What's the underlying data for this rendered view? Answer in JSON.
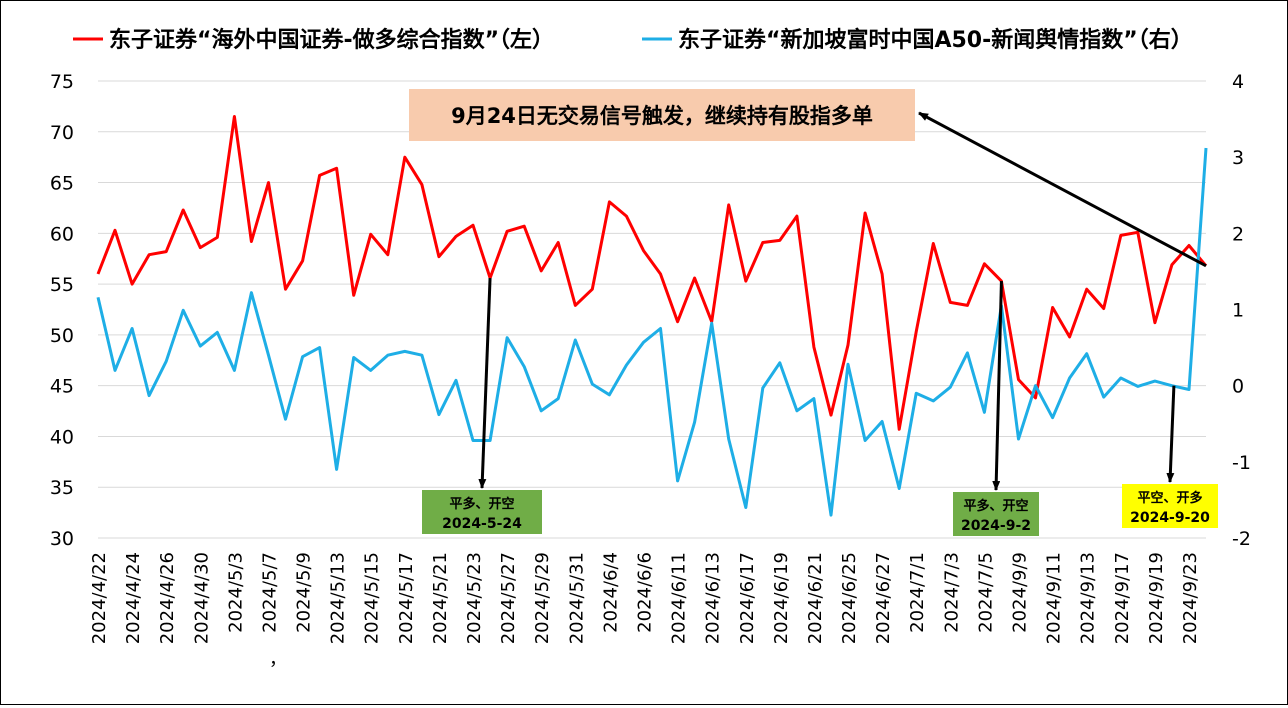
{
  "chart_data": {
    "type": "line",
    "legend_position": "top",
    "grid": "horizontal",
    "left_axis": {
      "ylim": [
        30,
        75
      ],
      "ticks": [
        "30",
        "35",
        "40",
        "45",
        "50",
        "55",
        "60",
        "65",
        "70",
        "75"
      ]
    },
    "right_axis": {
      "ylim": [
        -2,
        4
      ],
      "ticks": [
        "-2",
        "-1",
        "0",
        "1",
        "2",
        "3",
        "4"
      ]
    },
    "x_tick_labels": [
      "2024/4/22",
      "2024/4/24",
      "2024/4/26",
      "2024/4/30",
      "2024/5/3",
      "2024/5/7",
      "2024/5/9",
      "2024/5/13",
      "2024/5/15",
      "2024/5/17",
      "2024/5/21",
      "2024/5/23",
      "2024/5/27",
      "2024/5/29",
      "2024/5/31",
      "2024/6/4",
      "2024/6/6",
      "2024/6/11",
      "2024/6/13",
      "2024/6/17",
      "2024/6/19",
      "2024/6/21",
      "2024/6/25",
      "2024/6/27",
      "2024/7/1",
      "2024/7/3",
      "2024/7/5",
      "2024/9/9",
      "2024/9/11",
      "2024/9/13",
      "2024/9/17",
      "2024/9/19",
      "2024/9/23"
    ],
    "series": [
      {
        "name": "东子证券“海外中国证券-做多综合指数”（左）",
        "axis": "left",
        "color": "#ff0000",
        "values": [
          56.0,
          60.3,
          55.0,
          57.9,
          58.2,
          62.3,
          58.6,
          59.6,
          71.5,
          59.2,
          65.0,
          54.5,
          57.3,
          65.7,
          66.4,
          53.9,
          59.9,
          57.9,
          67.5,
          64.8,
          57.7,
          59.7,
          60.8,
          55.6,
          60.2,
          60.7,
          56.3,
          59.1,
          52.9,
          54.5,
          63.1,
          61.7,
          58.3,
          56.0,
          51.3,
          55.6,
          51.3,
          62.8,
          55.3,
          59.1,
          59.3,
          61.7,
          48.8,
          42.1,
          49.0,
          62.0,
          56.0,
          40.7,
          50.3,
          59.0,
          53.2,
          52.9,
          57.0,
          55.3,
          45.6,
          43.8,
          52.7,
          49.8,
          54.5,
          52.6,
          59.8,
          60.1,
          51.2,
          56.9,
          58.8,
          56.8
        ]
      },
      {
        "name": "东子证券“新加坡富时中国A50-新闻舆情指数”（右）",
        "axis": "right",
        "color": "#1eaee6",
        "values": [
          1.16,
          0.2,
          0.75,
          -0.13,
          0.32,
          0.99,
          0.52,
          0.7,
          0.2,
          1.22,
          0.4,
          -0.44,
          0.38,
          0.5,
          -1.1,
          0.37,
          0.2,
          0.4,
          0.45,
          0.4,
          -0.38,
          0.07,
          -0.72,
          -0.72,
          0.63,
          0.25,
          -0.33,
          -0.17,
          0.6,
          0.02,
          -0.12,
          0.27,
          0.57,
          0.75,
          -1.25,
          -0.48,
          0.82,
          -0.7,
          -1.6,
          -0.03,
          0.3,
          -0.33,
          -0.17,
          -1.7,
          0.28,
          -0.72,
          -0.47,
          -1.35,
          -0.1,
          -0.2,
          -0.02,
          0.43,
          -0.35,
          1.05,
          -0.7,
          0.0,
          -0.42,
          0.1,
          0.42,
          -0.15,
          0.1,
          -0.01,
          0.06,
          0.0,
          -0.05,
          3.12
        ]
      }
    ],
    "annotations": [
      {
        "text": "9月24日无交易信号触发，继续持有股指多单",
        "style": "callout-peach"
      },
      {
        "line1": "平多、开空",
        "line2": "2024-5-24",
        "bg": "#70ad47",
        "at_index": 23
      },
      {
        "line1": "平多、开空",
        "line2": "2024-9-2",
        "bg": "#70ad47",
        "at_index": 53
      },
      {
        "line1": "平空、开多",
        "line2": "2024-9-20",
        "bg": "#ffff00",
        "at_index": 63
      }
    ],
    "stray_mark": "，"
  }
}
